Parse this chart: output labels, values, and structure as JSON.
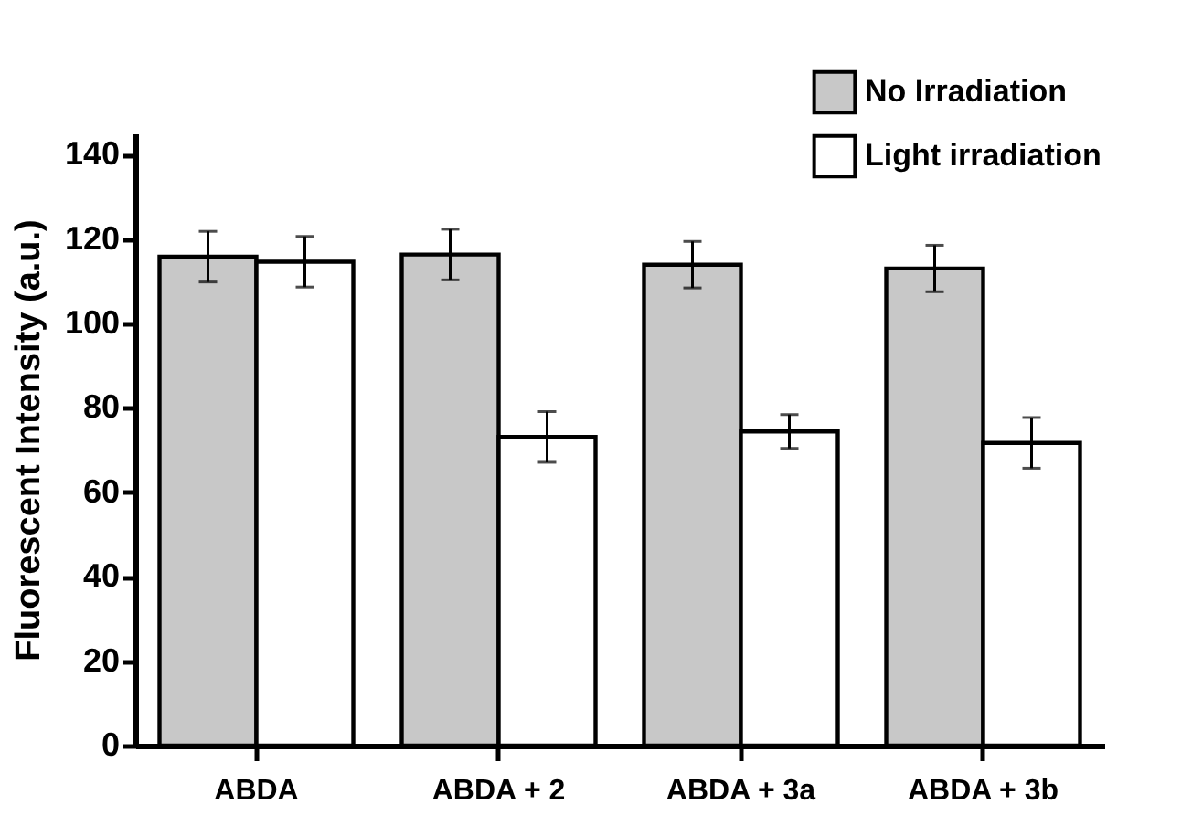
{
  "chart_data": {
    "type": "bar",
    "ylabel": "Fluorescent Intensity (a.u.)",
    "categories": [
      "ABDA",
      "ABDA + 2",
      "ABDA + 3a",
      "ABDA + 3b"
    ],
    "series": [
      {
        "name": "No Irradiation",
        "color": "#c8c8c8",
        "values": [
          115.8,
          116.3,
          113.9,
          113.0
        ],
        "errors": [
          6,
          6,
          5.5,
          5.5
        ]
      },
      {
        "name": "Light irradiation",
        "color": "#ffffff",
        "values": [
          114.6,
          73.1,
          74.4,
          71.7
        ],
        "errors": [
          6,
          6,
          4,
          6
        ]
      }
    ],
    "ylim": [
      0,
      145
    ],
    "yticks": [
      0,
      20,
      40,
      60,
      80,
      100,
      120,
      140
    ],
    "grid": false,
    "legend": "top right"
  }
}
